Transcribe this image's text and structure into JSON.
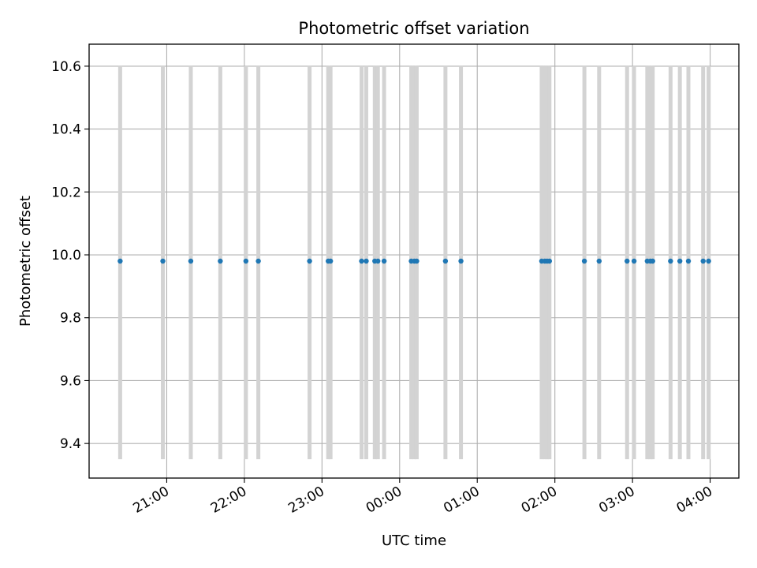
{
  "chart_data": {
    "type": "scatter",
    "title": "Photometric offset variation",
    "xlabel": "UTC time",
    "ylabel": "Photometric offset",
    "x_unit": "UTC hour (values >= 24 are after midnight)",
    "xlim": [
      20.0,
      28.37
    ],
    "ylim": [
      9.29,
      10.67
    ],
    "yticks": [
      9.4,
      9.6,
      9.8,
      10.0,
      10.2,
      10.4,
      10.6
    ],
    "ytick_labels": [
      "9.4",
      "9.6",
      "9.8",
      "10.0",
      "10.2",
      "10.4",
      "10.6"
    ],
    "xticks": [
      21,
      22,
      23,
      24,
      25,
      26,
      27,
      28
    ],
    "xtick_labels": [
      "21:00",
      "22:00",
      "23:00",
      "00:00",
      "01:00",
      "02:00",
      "03:00",
      "04:00"
    ],
    "grid": true,
    "colors": {
      "points": "#1f77b4",
      "error_bars": "#d3d3d3",
      "grid": "#b0b0b0"
    },
    "series": [
      {
        "x": [
          20.4,
          20.95,
          21.31,
          21.69,
          22.02,
          22.18,
          22.84,
          23.08,
          23.11,
          23.51,
          23.57,
          23.68,
          23.72,
          23.8,
          24.15,
          24.19,
          24.22,
          24.59,
          24.79,
          25.83,
          25.87,
          25.9,
          25.93,
          26.38,
          26.57,
          26.93,
          27.02,
          27.19,
          27.23,
          27.26,
          27.49,
          27.61,
          27.72,
          27.91,
          27.98
        ],
        "y": [
          9.98,
          9.98,
          9.98,
          9.98,
          9.98,
          9.98,
          9.98,
          9.98,
          9.98,
          9.98,
          9.98,
          9.98,
          9.98,
          9.98,
          9.98,
          9.98,
          9.98,
          9.98,
          9.98,
          9.98,
          9.98,
          9.98,
          9.98,
          9.98,
          9.98,
          9.98,
          9.98,
          9.98,
          9.98,
          9.98,
          9.98,
          9.98,
          9.98,
          9.98,
          9.98
        ],
        "yerr_low": 9.35,
        "yerr_high": 10.6
      }
    ]
  }
}
